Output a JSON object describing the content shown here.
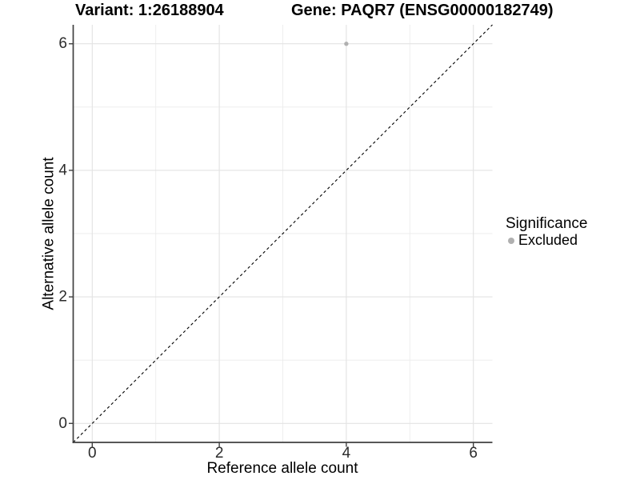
{
  "chart_data": {
    "type": "scatter",
    "title_left": "Variant: 1:26188904",
    "title_right": "Gene: PAQR7 (ENSG00000182749)",
    "xlabel": "Reference allele count",
    "ylabel": "Alternative allele count",
    "xlim": [
      -0.3,
      6.3
    ],
    "ylim": [
      -0.3,
      6.3
    ],
    "xticks": [
      0,
      2,
      4,
      6
    ],
    "yticks": [
      0,
      2,
      4,
      6
    ],
    "minor_gridlines": [
      1,
      3,
      5
    ],
    "grid": true,
    "identity_line": {
      "style": "dashed",
      "slope": 1,
      "intercept": 0
    },
    "points": [
      {
        "x": 4,
        "y": 6,
        "series": "Excluded"
      }
    ],
    "legend": {
      "title": "Significance",
      "position": "right",
      "items": [
        {
          "label": "Excluded",
          "color": "#b0b0b0"
        }
      ]
    }
  },
  "colors": {
    "background": "#ffffff",
    "grid_major": "#e3e3e3",
    "grid_minor": "#ececec",
    "axis_line": "#404040",
    "tick_label": "#2b2b2b",
    "identity_line": "#000000",
    "point": "#b0b0b0"
  }
}
